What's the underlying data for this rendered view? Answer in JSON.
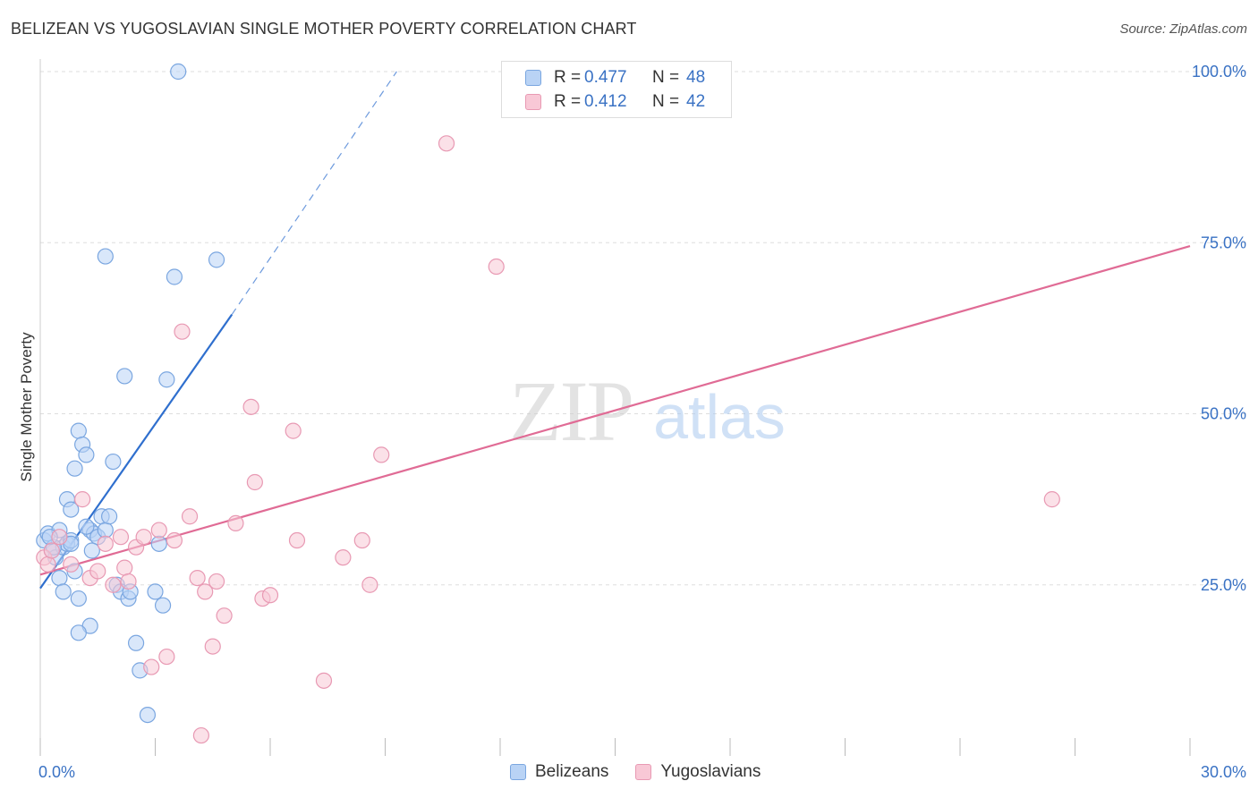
{
  "header": {
    "title": "BELIZEAN VS YUGOSLAVIAN SINGLE MOTHER POVERTY CORRELATION CHART",
    "source": "Source: ZipAtlas.com"
  },
  "legend": {
    "r_label": "R =",
    "n_label": "N =",
    "rows": [
      {
        "r": "0.477",
        "n": "48"
      },
      {
        "r": "0.412",
        "n": "42"
      }
    ]
  },
  "bottom_legend": [
    "Belizeans",
    "Yugoslavians"
  ],
  "watermark": {
    "part1": "ZIP",
    "part2": "atlas"
  },
  "colors": {
    "blue_fill": "#b9d3f5",
    "blue_stroke": "#7aa6e0",
    "blue_line": "#2f6fce",
    "pink_fill": "#f8c8d6",
    "pink_stroke": "#e899b3",
    "pink_line": "#e06b95",
    "tick_text": "#3a72c4",
    "grid": "#dddddd"
  },
  "chart_data": {
    "type": "scatter",
    "title": "BELIZEAN VS YUGOSLAVIAN SINGLE MOTHER POVERTY CORRELATION CHART",
    "xlabel": "",
    "ylabel": "Single Mother Poverty",
    "xlim": [
      0,
      30
    ],
    "ylim": [
      0,
      100
    ],
    "x_tick_labels": [
      "0.0%",
      "30.0%"
    ],
    "y_ticks": [
      25,
      50,
      75,
      100
    ],
    "y_tick_labels": [
      "25.0%",
      "50.0%",
      "75.0%",
      "100.0%"
    ],
    "grid": true,
    "legend_position": "top-center",
    "series": [
      {
        "name": "Belizeans",
        "r": 0.477,
        "n": 48,
        "trend": {
          "x0": 0.0,
          "y0": 24.5,
          "x1": 5.0,
          "y1": 64.5,
          "dash_to_x": 9.3,
          "dash_to_y": 100
        },
        "points": [
          [
            0.1,
            31.5
          ],
          [
            0.2,
            32.5
          ],
          [
            0.3,
            30
          ],
          [
            0.4,
            29
          ],
          [
            0.5,
            33
          ],
          [
            0.6,
            30.5
          ],
          [
            0.7,
            31
          ],
          [
            0.8,
            31.5
          ],
          [
            0.35,
            30.5
          ],
          [
            0.5,
            26
          ],
          [
            0.6,
            24
          ],
          [
            0.7,
            37.5
          ],
          [
            0.8,
            36
          ],
          [
            0.9,
            42
          ],
          [
            1.0,
            47.5
          ],
          [
            1.1,
            45.5
          ],
          [
            1.2,
            44
          ],
          [
            1.3,
            33
          ],
          [
            1.4,
            32.5
          ],
          [
            1.5,
            32
          ],
          [
            1.6,
            35
          ],
          [
            1.7,
            33
          ],
          [
            1.8,
            35
          ],
          [
            1.9,
            43
          ],
          [
            2.0,
            25
          ],
          [
            2.1,
            24
          ],
          [
            2.2,
            55.5
          ],
          [
            2.3,
            23
          ],
          [
            2.5,
            16.5
          ],
          [
            2.6,
            12.5
          ],
          [
            2.8,
            6
          ],
          [
            3.0,
            24
          ],
          [
            3.1,
            31
          ],
          [
            3.2,
            22
          ],
          [
            3.3,
            55
          ],
          [
            3.5,
            70
          ],
          [
            3.6,
            100
          ],
          [
            4.6,
            72.5
          ],
          [
            1.7,
            73
          ],
          [
            1.0,
            23
          ],
          [
            1.3,
            19
          ],
          [
            1.0,
            18
          ],
          [
            0.9,
            27
          ],
          [
            1.35,
            30
          ],
          [
            2.35,
            24
          ],
          [
            0.25,
            32
          ],
          [
            1.2,
            33.5
          ],
          [
            0.8,
            31
          ]
        ]
      },
      {
        "name": "Yugoslavians",
        "r": 0.412,
        "n": 42,
        "trend": {
          "x0": 0.0,
          "y0": 26.5,
          "x1": 30.0,
          "y1": 74.5
        },
        "points": [
          [
            0.1,
            29
          ],
          [
            0.2,
            28
          ],
          [
            0.3,
            30
          ],
          [
            0.5,
            32
          ],
          [
            0.8,
            28
          ],
          [
            1.1,
            37.5
          ],
          [
            1.3,
            26
          ],
          [
            1.5,
            27
          ],
          [
            1.7,
            31
          ],
          [
            1.9,
            25
          ],
          [
            2.1,
            32
          ],
          [
            2.2,
            27.5
          ],
          [
            2.3,
            25.5
          ],
          [
            2.5,
            30.5
          ],
          [
            2.7,
            32
          ],
          [
            2.9,
            13
          ],
          [
            3.1,
            33
          ],
          [
            3.3,
            14.5
          ],
          [
            3.5,
            31.5
          ],
          [
            3.7,
            62
          ],
          [
            3.9,
            35
          ],
          [
            4.1,
            26
          ],
          [
            4.2,
            3
          ],
          [
            4.3,
            24
          ],
          [
            4.5,
            16
          ],
          [
            4.6,
            25.5
          ],
          [
            4.8,
            20.5
          ],
          [
            5.1,
            34
          ],
          [
            5.5,
            51
          ],
          [
            5.6,
            40
          ],
          [
            5.8,
            23
          ],
          [
            6.0,
            23.5
          ],
          [
            6.6,
            47.5
          ],
          [
            6.7,
            31.5
          ],
          [
            7.4,
            11
          ],
          [
            7.9,
            29
          ],
          [
            8.4,
            31.5
          ],
          [
            8.6,
            25
          ],
          [
            8.9,
            44
          ],
          [
            10.6,
            89.5
          ],
          [
            11.9,
            71.5
          ],
          [
            26.4,
            37.5
          ]
        ]
      }
    ]
  }
}
